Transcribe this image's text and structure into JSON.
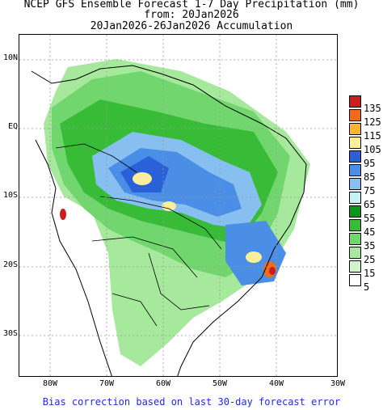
{
  "title": {
    "line1": "NCEP GFS Ensemble Forecast 1-7 Day Precipitation (mm)",
    "line2": "from: 20Jan2026",
    "line3": "20Jan2026-26Jan2026 Accumulation"
  },
  "axes": {
    "lat_labels": [
      "10N",
      "EQ",
      "10S",
      "20S",
      "30S"
    ],
    "lon_labels": [
      "80W",
      "70W",
      "60W",
      "50W",
      "40W",
      "30W"
    ]
  },
  "colorbar": {
    "levels": [
      "135",
      "125",
      "115",
      "105",
      "95",
      "85",
      "75",
      "65",
      "55",
      "45",
      "35",
      "25",
      "15",
      "5"
    ],
    "colors": [
      "#c81e1e",
      "#f06a18",
      "#fcb42c",
      "#fcee9c",
      "#2a60d8",
      "#4a8ee6",
      "#86bff0",
      "#c8f2f2",
      "#0a9618",
      "#38bc38",
      "#72d66e",
      "#a6e89c",
      "#d0f5c8",
      "#ffffff"
    ]
  },
  "footer": "Bias correction based on last 30-day forecast error"
}
